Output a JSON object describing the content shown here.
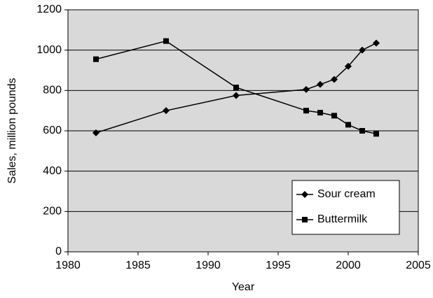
{
  "chart_data": {
    "type": "line",
    "x_label": "Year",
    "y_label": "Sales, million pounds",
    "x": [
      1982,
      1987,
      1992,
      1997,
      1998,
      1999,
      2000,
      2001,
      2002
    ],
    "series": [
      {
        "name": "Sour cream",
        "color": "#000000",
        "marker": "diamond",
        "values": [
          590,
          700,
          775,
          805,
          830,
          855,
          920,
          1000,
          1035
        ]
      },
      {
        "name": "Buttermilk",
        "color": "#000000",
        "marker": "square",
        "values": [
          955,
          1045,
          815,
          700,
          690,
          675,
          630,
          600,
          585
        ]
      }
    ],
    "xlim": [
      1980,
      2005
    ],
    "xticks": [
      1980,
      1985,
      1990,
      1995,
      2000,
      2005
    ],
    "ylim": [
      0,
      1200
    ],
    "yticks": [
      0,
      200,
      400,
      600,
      800,
      1000,
      1200
    ],
    "grid": true,
    "legend": "lower right",
    "background": "#d9d9d9"
  }
}
